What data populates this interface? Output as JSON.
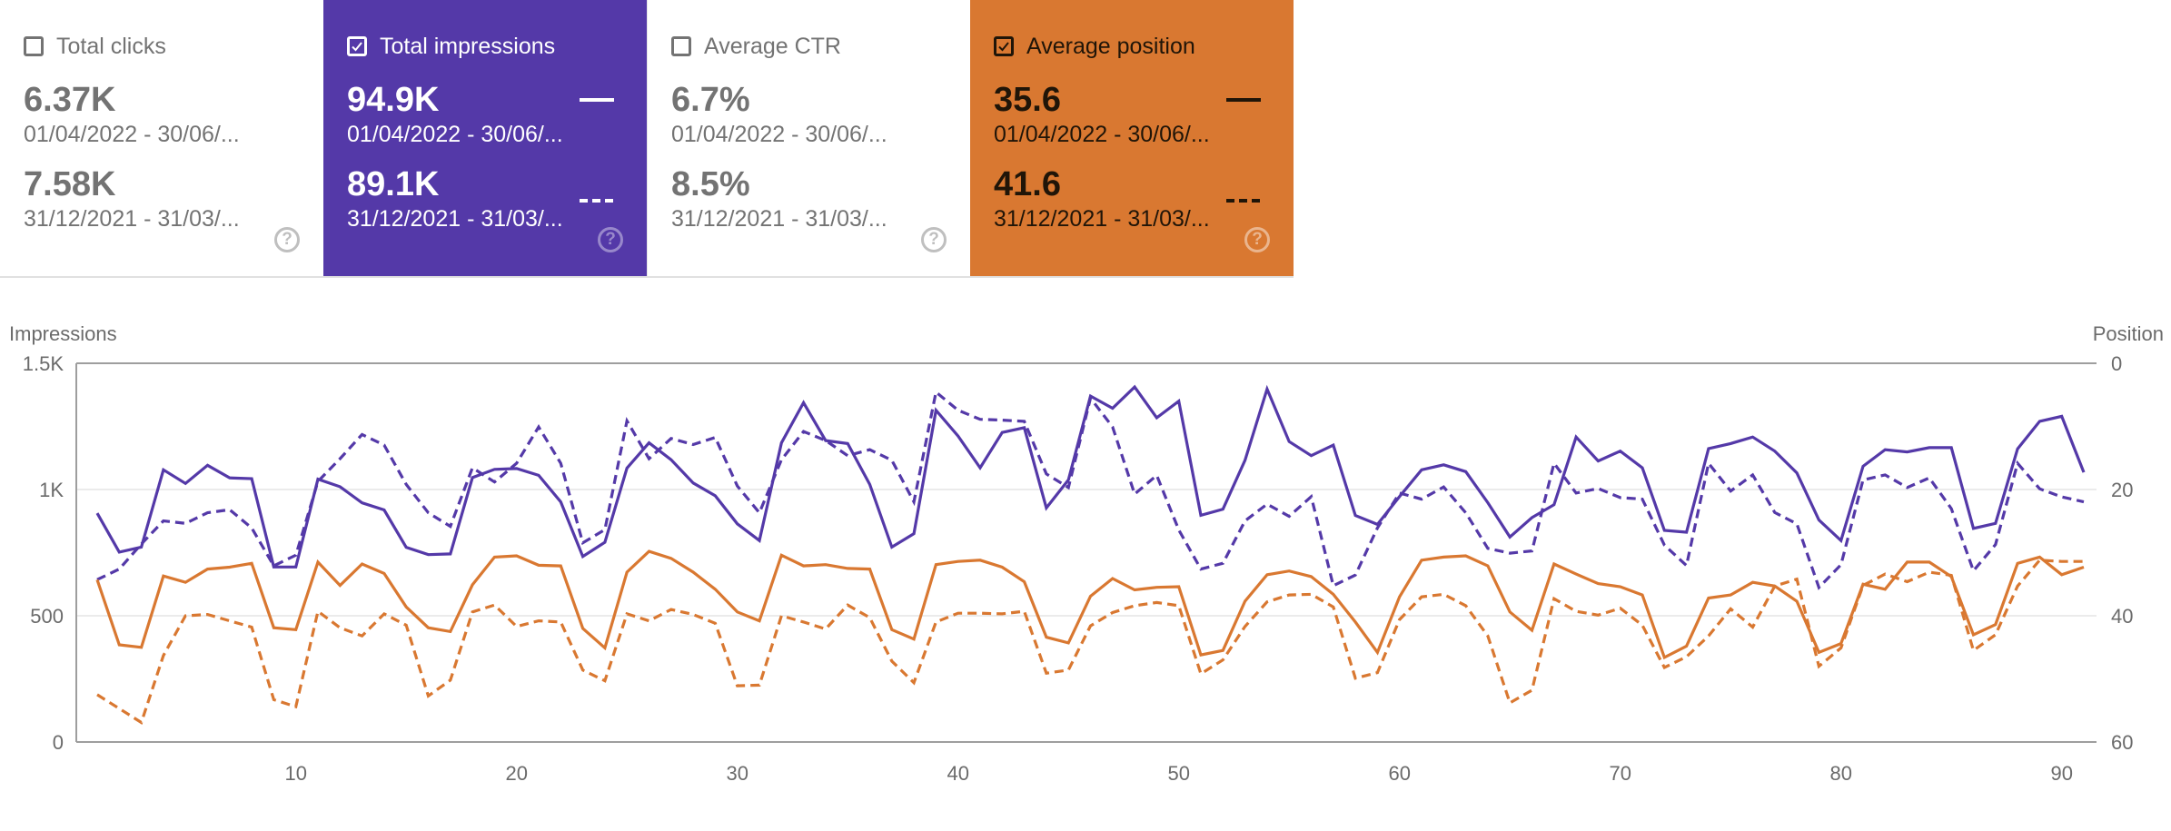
{
  "cards": [
    {
      "id": "clicks",
      "label": "Total clicks",
      "checked": false,
      "current_value": "6.37K",
      "current_range": "01/04/2022 - 30/06/...",
      "previous_value": "7.58K",
      "previous_range": "31/12/2021 - 31/03/...",
      "help_icon": "help-circle-icon"
    },
    {
      "id": "impressions",
      "label": "Total impressions",
      "checked": true,
      "current_value": "94.9K",
      "current_range": "01/04/2022 - 30/06/...",
      "previous_value": "89.1K",
      "previous_range": "31/12/2021 - 31/03/...",
      "help_icon": "help-circle-icon",
      "color": "#5439a8"
    },
    {
      "id": "ctr",
      "label": "Average CTR",
      "checked": false,
      "current_value": "6.7%",
      "current_range": "01/04/2022 - 30/06/...",
      "previous_value": "8.5%",
      "previous_range": "31/12/2021 - 31/03/...",
      "help_icon": "help-circle-icon"
    },
    {
      "id": "position",
      "label": "Average position",
      "checked": true,
      "current_value": "35.6",
      "current_range": "01/04/2022 - 30/06/...",
      "previous_value": "41.6",
      "previous_range": "31/12/2021 - 31/03/...",
      "help_icon": "help-circle-icon",
      "color": "#d97831"
    }
  ],
  "help_glyph": "?",
  "chart_data": {
    "type": "line",
    "left_axis": {
      "label": "Impressions",
      "ylim": [
        0,
        1500
      ],
      "ticks": [
        0,
        500,
        1000,
        1500
      ],
      "tick_labels": [
        "0",
        "500",
        "1K",
        "1.5K"
      ]
    },
    "right_axis": {
      "label": "Position",
      "ylim": [
        0,
        60
      ],
      "reversed": true,
      "ticks": [
        0,
        20,
        40,
        60
      ],
      "tick_labels": [
        "0",
        "20",
        "40",
        "60"
      ]
    },
    "x": {
      "range": [
        1,
        91
      ],
      "ticks": [
        10,
        20,
        30,
        40,
        50,
        60,
        70,
        80,
        90
      ],
      "tick_labels": [
        "10",
        "20",
        "30",
        "40",
        "50",
        "60",
        "70",
        "80",
        "90"
      ]
    },
    "grid": true,
    "series": [
      {
        "name": "Impressions (01/04/2022 - 30/06/2022)",
        "axis": "left",
        "style": "solid",
        "color": "#5439a8",
        "values": [
          906,
          752,
          772,
          1078,
          1024,
          1096,
          1046,
          1043,
          693,
          693,
          1041,
          1011,
          947,
          919,
          771,
          742,
          745,
          1047,
          1080,
          1083,
          1056,
          951,
          735,
          791,
          1085,
          1185,
          1118,
          1026,
          975,
          864,
          798,
          1185,
          1344,
          1194,
          1182,
          1020,
          772,
          825,
          1314,
          1212,
          1086,
          1226,
          1245,
          927,
          1038,
          1370,
          1322,
          1406,
          1284,
          1350,
          898,
          922,
          1116,
          1398,
          1190,
          1134,
          1176,
          897,
          862,
          972,
          1078,
          1098,
          1071,
          948,
          812,
          889,
          940,
          1208,
          1113,
          1152,
          1086,
          838,
          831,
          1162,
          1182,
          1208,
          1152,
          1066,
          879,
          798,
          1092,
          1158,
          1149,
          1166,
          1166,
          846,
          866,
          1161,
          1270,
          1290,
          1068
        ]
      },
      {
        "name": "Impressions (31/12/2021 - 31/03/2022)",
        "axis": "left",
        "style": "dashed",
        "color": "#5439a8",
        "values": [
          643,
          685,
          784,
          876,
          866,
          908,
          920,
          848,
          698,
          740,
          1032,
          1122,
          1218,
          1176,
          1020,
          908,
          854,
          1086,
          1030,
          1104,
          1248,
          1104,
          789,
          841,
          1272,
          1122,
          1202,
          1178,
          1206,
          1014,
          908,
          1118,
          1230,
          1194,
          1134,
          1158,
          1116,
          951,
          1386,
          1314,
          1278,
          1275,
          1270,
          1062,
          1008,
          1362,
          1248,
          982,
          1056,
          840,
          685,
          708,
          876,
          942,
          894,
          972,
          619,
          661,
          848,
          986,
          962,
          1010,
          908,
          767,
          748,
          757,
          1104,
          986,
          1004,
          968,
          962,
          780,
          699,
          1104,
          994,
          1058,
          909,
          864,
          612,
          702,
          1038,
          1058,
          1008,
          1046,
          924,
          678,
          782,
          1104,
          1003,
          971,
          951
        ]
      },
      {
        "name": "Position (01/04/2022 - 30/06/2022)",
        "axis": "right",
        "style": "solid",
        "color": "#d97831",
        "values": [
          34.3,
          44.6,
          45.0,
          33.7,
          34.7,
          32.6,
          32.3,
          31.7,
          41.9,
          42.2,
          31.5,
          35.2,
          31.8,
          33.3,
          38.6,
          41.9,
          42.5,
          35.1,
          30.7,
          30.5,
          32.0,
          32.1,
          42.0,
          45.1,
          33.1,
          29.8,
          30.9,
          33.1,
          35.8,
          39.4,
          40.8,
          30.4,
          32.1,
          31.9,
          32.5,
          32.6,
          42.2,
          43.7,
          31.9,
          31.4,
          31.2,
          32.3,
          34.6,
          43.4,
          44.3,
          36.9,
          34.1,
          35.9,
          35.5,
          35.4,
          46.2,
          45.5,
          37.7,
          33.5,
          32.9,
          33.8,
          36.6,
          41.0,
          45.8,
          37.0,
          31.2,
          30.7,
          30.5,
          32.1,
          39.4,
          42.3,
          31.8,
          33.4,
          34.9,
          35.4,
          36.7,
          46.6,
          44.8,
          37.2,
          36.7,
          34.7,
          35.3,
          37.7,
          45.8,
          44.4,
          35.0,
          35.8,
          31.5,
          31.5,
          33.8,
          43.0,
          41.4,
          31.7,
          30.7,
          33.5,
          32.3
        ]
      },
      {
        "name": "Position (31/12/2021 - 31/03/2022)",
        "axis": "right",
        "style": "dashed",
        "color": "#d97831",
        "values": [
          52.5,
          54.7,
          56.9,
          46.3,
          40.0,
          39.8,
          40.8,
          41.8,
          53.3,
          54.4,
          39.3,
          41.9,
          43.2,
          39.7,
          41.5,
          52.7,
          50.2,
          39.4,
          38.3,
          41.7,
          40.8,
          41.0,
          48.6,
          50.3,
          39.7,
          40.8,
          39.0,
          39.8,
          41.2,
          51.1,
          51.0,
          40.0,
          41.0,
          42.1,
          38.3,
          40.3,
          47.2,
          50.6,
          41.0,
          39.6,
          39.6,
          39.7,
          39.3,
          49.1,
          48.6,
          41.6,
          39.5,
          38.4,
          37.9,
          38.4,
          49.2,
          47.0,
          41.7,
          37.8,
          36.7,
          36.6,
          38.6,
          49.9,
          49.0,
          40.6,
          37.0,
          36.6,
          38.4,
          43.2,
          53.8,
          51.8,
          37.3,
          39.3,
          39.9,
          38.8,
          41.5,
          48.2,
          46.5,
          43.2,
          38.9,
          41.8,
          35.3,
          34.2,
          48.0,
          45.1,
          35.2,
          33.4,
          34.6,
          33.1,
          33.6,
          45.5,
          43.0,
          35.3,
          31.2,
          31.4,
          31.4
        ]
      }
    ]
  }
}
